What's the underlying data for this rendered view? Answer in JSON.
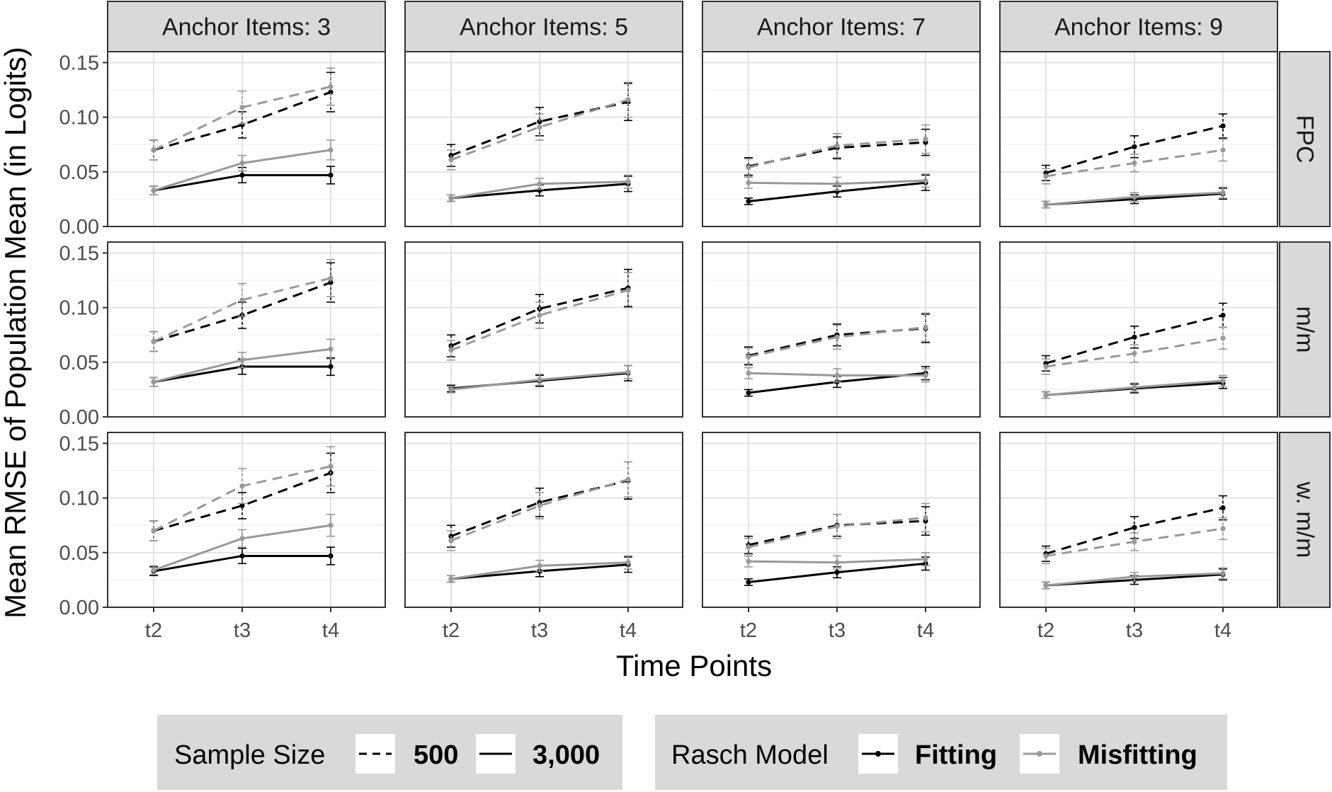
{
  "chart_data": {
    "type": "line",
    "title": "",
    "xlabel": "Time Points",
    "ylabel": "Mean RMSE of Population Mean (in Logits)",
    "x": [
      "t2",
      "t3",
      "t4"
    ],
    "ylim": [
      0,
      0.16
    ],
    "yticks": [
      "0.00",
      "0.05",
      "0.10",
      "0.15"
    ],
    "ytick_values": [
      0,
      0.05,
      0.1,
      0.15
    ],
    "grid": true,
    "columns": [
      "Anchor Items: 3",
      "Anchor Items: 5",
      "Anchor Items: 7",
      "Anchor Items: 9"
    ],
    "rows": [
      "FPC",
      "m/m",
      "w. m/m"
    ],
    "colors": {
      "Fitting": "#000000",
      "Misfitting": "#999999"
    },
    "legend": {
      "placement": "bottom",
      "groups": [
        {
          "title": "Sample Size",
          "items": [
            {
              "label": "500",
              "linetype": "dashed"
            },
            {
              "label": "3,000",
              "linetype": "solid"
            }
          ]
        },
        {
          "title": "Rasch Model",
          "items": [
            {
              "label": "Fitting",
              "color": "#000000"
            },
            {
              "label": "Misfitting",
              "color": "#999999"
            }
          ]
        }
      ]
    },
    "panels": [
      {
        "row": "FPC",
        "column": "Anchor Items: 3",
        "series": [
          {
            "model": "Fitting",
            "sample": "500",
            "values": [
              0.07,
              0.093,
              0.123
            ],
            "err": [
              0.009,
              0.012,
              0.018
            ]
          },
          {
            "model": "Misfitting",
            "sample": "500",
            "values": [
              0.07,
              0.109,
              0.128
            ],
            "err": [
              0.009,
              0.015,
              0.017
            ]
          },
          {
            "model": "Fitting",
            "sample": "3,000",
            "values": [
              0.033,
              0.047,
              0.047
            ],
            "err": [
              0.004,
              0.007,
              0.008
            ]
          },
          {
            "model": "Misfitting",
            "sample": "3,000",
            "values": [
              0.033,
              0.058,
              0.07
            ],
            "err": [
              0.004,
              0.007,
              0.009
            ]
          }
        ]
      },
      {
        "row": "FPC",
        "column": "Anchor Items: 5",
        "series": [
          {
            "model": "Fitting",
            "sample": "500",
            "values": [
              0.065,
              0.096,
              0.114
            ],
            "err": [
              0.01,
              0.013,
              0.017
            ]
          },
          {
            "model": "Misfitting",
            "sample": "500",
            "values": [
              0.061,
              0.091,
              0.116
            ],
            "err": [
              0.009,
              0.012,
              0.016
            ]
          },
          {
            "model": "Fitting",
            "sample": "3,000",
            "values": [
              0.026,
              0.033,
              0.039
            ],
            "err": [
              0.003,
              0.005,
              0.007
            ]
          },
          {
            "model": "Misfitting",
            "sample": "3,000",
            "values": [
              0.026,
              0.039,
              0.041
            ],
            "err": [
              0.003,
              0.005,
              0.006
            ]
          }
        ]
      },
      {
        "row": "FPC",
        "column": "Anchor Items: 7",
        "series": [
          {
            "model": "Fitting",
            "sample": "500",
            "values": [
              0.055,
              0.072,
              0.077
            ],
            "err": [
              0.008,
              0.01,
              0.012
            ]
          },
          {
            "model": "Misfitting",
            "sample": "500",
            "values": [
              0.054,
              0.074,
              0.08
            ],
            "err": [
              0.008,
              0.011,
              0.013
            ]
          },
          {
            "model": "Fitting",
            "sample": "3,000",
            "values": [
              0.023,
              0.032,
              0.04
            ],
            "err": [
              0.003,
              0.005,
              0.007
            ]
          },
          {
            "model": "Misfitting",
            "sample": "3,000",
            "values": [
              0.04,
              0.039,
              0.042
            ],
            "err": [
              0.005,
              0.006,
              0.006
            ]
          }
        ]
      },
      {
        "row": "FPC",
        "column": "Anchor Items: 9",
        "series": [
          {
            "model": "Fitting",
            "sample": "500",
            "values": [
              0.049,
              0.073,
              0.092
            ],
            "err": [
              0.007,
              0.01,
              0.011
            ]
          },
          {
            "model": "Misfitting",
            "sample": "500",
            "values": [
              0.046,
              0.058,
              0.07
            ],
            "err": [
              0.007,
              0.008,
              0.01
            ]
          },
          {
            "model": "Fitting",
            "sample": "3,000",
            "values": [
              0.02,
              0.025,
              0.03
            ],
            "err": [
              0.003,
              0.004,
              0.005
            ]
          },
          {
            "model": "Misfitting",
            "sample": "3,000",
            "values": [
              0.02,
              0.027,
              0.031
            ],
            "err": [
              0.003,
              0.004,
              0.005
            ]
          }
        ]
      },
      {
        "row": "m/m",
        "column": "Anchor Items: 3",
        "series": [
          {
            "model": "Fitting",
            "sample": "500",
            "values": [
              0.069,
              0.093,
              0.123
            ],
            "err": [
              0.009,
              0.012,
              0.018
            ]
          },
          {
            "model": "Misfitting",
            "sample": "500",
            "values": [
              0.069,
              0.107,
              0.127
            ],
            "err": [
              0.009,
              0.015,
              0.017
            ]
          },
          {
            "model": "Fitting",
            "sample": "3,000",
            "values": [
              0.032,
              0.046,
              0.046
            ],
            "err": [
              0.004,
              0.007,
              0.008
            ]
          },
          {
            "model": "Misfitting",
            "sample": "3,000",
            "values": [
              0.032,
              0.052,
              0.062
            ],
            "err": [
              0.004,
              0.007,
              0.009
            ]
          }
        ]
      },
      {
        "row": "m/m",
        "column": "Anchor Items: 5",
        "series": [
          {
            "model": "Fitting",
            "sample": "500",
            "values": [
              0.065,
              0.099,
              0.118
            ],
            "err": [
              0.01,
              0.013,
              0.017
            ]
          },
          {
            "model": "Misfitting",
            "sample": "500",
            "values": [
              0.061,
              0.093,
              0.116
            ],
            "err": [
              0.009,
              0.012,
              0.016
            ]
          },
          {
            "model": "Fitting",
            "sample": "3,000",
            "values": [
              0.026,
              0.033,
              0.04
            ],
            "err": [
              0.003,
              0.005,
              0.007
            ]
          },
          {
            "model": "Misfitting",
            "sample": "3,000",
            "values": [
              0.025,
              0.034,
              0.041
            ],
            "err": [
              0.003,
              0.005,
              0.006
            ]
          }
        ]
      },
      {
        "row": "m/m",
        "column": "Anchor Items: 7",
        "series": [
          {
            "model": "Fitting",
            "sample": "500",
            "values": [
              0.056,
              0.075,
              0.081
            ],
            "err": [
              0.008,
              0.01,
              0.013
            ]
          },
          {
            "model": "Misfitting",
            "sample": "500",
            "values": [
              0.055,
              0.073,
              0.082
            ],
            "err": [
              0.008,
              0.011,
              0.013
            ]
          },
          {
            "model": "Fitting",
            "sample": "3,000",
            "values": [
              0.022,
              0.032,
              0.04
            ],
            "err": [
              0.003,
              0.005,
              0.006
            ]
          },
          {
            "model": "Misfitting",
            "sample": "3,000",
            "values": [
              0.04,
              0.038,
              0.038
            ],
            "err": [
              0.005,
              0.006,
              0.006
            ]
          }
        ]
      },
      {
        "row": "m/m",
        "column": "Anchor Items: 9",
        "series": [
          {
            "model": "Fitting",
            "sample": "500",
            "values": [
              0.049,
              0.073,
              0.093
            ],
            "err": [
              0.007,
              0.01,
              0.011
            ]
          },
          {
            "model": "Misfitting",
            "sample": "500",
            "values": [
              0.046,
              0.058,
              0.072
            ],
            "err": [
              0.007,
              0.008,
              0.01
            ]
          },
          {
            "model": "Fitting",
            "sample": "3,000",
            "values": [
              0.02,
              0.026,
              0.031
            ],
            "err": [
              0.003,
              0.004,
              0.005
            ]
          },
          {
            "model": "Misfitting",
            "sample": "3,000",
            "values": [
              0.02,
              0.027,
              0.033
            ],
            "err": [
              0.003,
              0.004,
              0.005
            ]
          }
        ]
      },
      {
        "row": "w. m/m",
        "column": "Anchor Items: 3",
        "series": [
          {
            "model": "Fitting",
            "sample": "500",
            "values": [
              0.07,
              0.093,
              0.123
            ],
            "err": [
              0.009,
              0.012,
              0.018
            ]
          },
          {
            "model": "Misfitting",
            "sample": "500",
            "values": [
              0.07,
              0.111,
              0.129
            ],
            "err": [
              0.009,
              0.016,
              0.018
            ]
          },
          {
            "model": "Fitting",
            "sample": "3,000",
            "values": [
              0.033,
              0.047,
              0.047
            ],
            "err": [
              0.004,
              0.007,
              0.008
            ]
          },
          {
            "model": "Misfitting",
            "sample": "3,000",
            "values": [
              0.034,
              0.063,
              0.075
            ],
            "err": [
              0.004,
              0.008,
              0.01
            ]
          }
        ]
      },
      {
        "row": "w. m/m",
        "column": "Anchor Items: 5",
        "series": [
          {
            "model": "Fitting",
            "sample": "500",
            "values": [
              0.065,
              0.096,
              0.116
            ],
            "err": [
              0.01,
              0.013,
              0.017
            ]
          },
          {
            "model": "Misfitting",
            "sample": "500",
            "values": [
              0.061,
              0.093,
              0.117
            ],
            "err": [
              0.009,
              0.012,
              0.016
            ]
          },
          {
            "model": "Fitting",
            "sample": "3,000",
            "values": [
              0.026,
              0.033,
              0.039
            ],
            "err": [
              0.003,
              0.005,
              0.007
            ]
          },
          {
            "model": "Misfitting",
            "sample": "3,000",
            "values": [
              0.026,
              0.038,
              0.041
            ],
            "err": [
              0.003,
              0.005,
              0.006
            ]
          }
        ]
      },
      {
        "row": "w. m/m",
        "column": "Anchor Items: 7",
        "series": [
          {
            "model": "Fitting",
            "sample": "500",
            "values": [
              0.057,
              0.075,
              0.079
            ],
            "err": [
              0.008,
              0.01,
              0.013
            ]
          },
          {
            "model": "Misfitting",
            "sample": "500",
            "values": [
              0.055,
              0.074,
              0.082
            ],
            "err": [
              0.008,
              0.011,
              0.013
            ]
          },
          {
            "model": "Fitting",
            "sample": "3,000",
            "values": [
              0.023,
              0.032,
              0.04
            ],
            "err": [
              0.003,
              0.005,
              0.006
            ]
          },
          {
            "model": "Misfitting",
            "sample": "3,000",
            "values": [
              0.042,
              0.041,
              0.044
            ],
            "err": [
              0.005,
              0.006,
              0.006
            ]
          }
        ]
      },
      {
        "row": "w. m/m",
        "column": "Anchor Items: 9",
        "series": [
          {
            "model": "Fitting",
            "sample": "500",
            "values": [
              0.049,
              0.073,
              0.091
            ],
            "err": [
              0.007,
              0.01,
              0.011
            ]
          },
          {
            "model": "Misfitting",
            "sample": "500",
            "values": [
              0.047,
              0.06,
              0.072
            ],
            "err": [
              0.007,
              0.008,
              0.01
            ]
          },
          {
            "model": "Fitting",
            "sample": "3,000",
            "values": [
              0.02,
              0.025,
              0.03
            ],
            "err": [
              0.003,
              0.004,
              0.005
            ]
          },
          {
            "model": "Misfitting",
            "sample": "3,000",
            "values": [
              0.02,
              0.028,
              0.031
            ],
            "err": [
              0.003,
              0.004,
              0.005
            ]
          }
        ]
      }
    ]
  }
}
